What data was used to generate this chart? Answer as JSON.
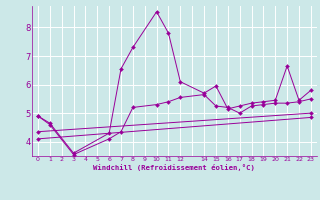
{
  "xlabel": "Windchill (Refroidissement éolien,°C)",
  "bg_color": "#cce8e8",
  "line_color": "#990099",
  "grid_color": "#ffffff",
  "xlim": [
    -0.5,
    23.5
  ],
  "ylim": [
    3.5,
    8.75
  ],
  "yticks": [
    4,
    5,
    6,
    7,
    8
  ],
  "xtick_labels": [
    "0",
    "1",
    "2",
    "3",
    "4",
    "5",
    "6",
    "7",
    "8",
    "9",
    "10",
    "11",
    "12",
    "",
    "14",
    "15",
    "16",
    "17",
    "18",
    "19",
    "20",
    "21",
    "22",
    "23"
  ],
  "lines": [
    {
      "x": [
        0,
        1,
        3,
        6,
        7,
        8,
        10,
        11,
        12,
        14,
        15,
        16,
        17,
        18,
        19,
        20,
        21,
        22,
        23
      ],
      "y": [
        4.9,
        4.65,
        3.6,
        4.3,
        6.55,
        7.3,
        8.55,
        7.8,
        6.1,
        5.7,
        5.95,
        5.15,
        5.25,
        5.35,
        5.4,
        5.45,
        6.65,
        5.45,
        5.8
      ]
    },
    {
      "x": [
        0,
        1,
        3,
        6,
        7,
        8,
        10,
        11,
        12,
        14,
        15,
        16,
        17,
        18,
        19,
        20,
        21,
        22,
        23
      ],
      "y": [
        4.9,
        4.6,
        3.55,
        4.1,
        4.35,
        5.2,
        5.3,
        5.4,
        5.55,
        5.65,
        5.25,
        5.2,
        5.0,
        5.25,
        5.3,
        5.35,
        5.35,
        5.4,
        5.5
      ]
    },
    {
      "x": [
        0,
        23
      ],
      "y": [
        4.35,
        5.0
      ]
    },
    {
      "x": [
        0,
        23
      ],
      "y": [
        4.1,
        4.85
      ]
    }
  ]
}
